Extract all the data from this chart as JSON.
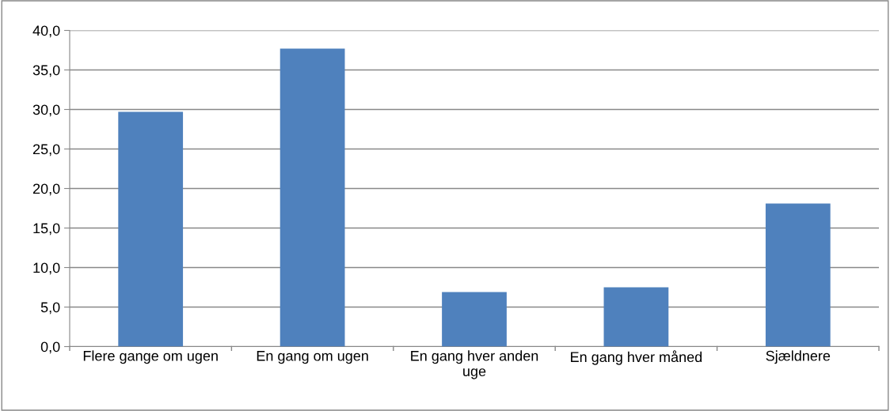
{
  "chart_data": {
    "type": "bar",
    "categories": [
      "Flere gange om ugen",
      "En gang om ugen",
      "En gang hver anden\nuge",
      "En gang hver måned",
      "Sjældnere"
    ],
    "values": [
      29.7,
      37.7,
      6.9,
      7.5,
      18.1
    ],
    "color": "#4f81bd",
    "ylim": [
      0,
      40
    ],
    "yticks": [
      {
        "value": 0,
        "label": "0,0"
      },
      {
        "value": 5,
        "label": "5,0"
      },
      {
        "value": 10,
        "label": "10,0"
      },
      {
        "value": 15,
        "label": "15,0"
      },
      {
        "value": 20,
        "label": "20,0"
      },
      {
        "value": 25,
        "label": "25,0"
      },
      {
        "value": 30,
        "label": "30,0"
      },
      {
        "value": 35,
        "label": "35,0"
      },
      {
        "value": 40,
        "label": "40,0"
      }
    ],
    "grid": "y",
    "legend": false
  }
}
